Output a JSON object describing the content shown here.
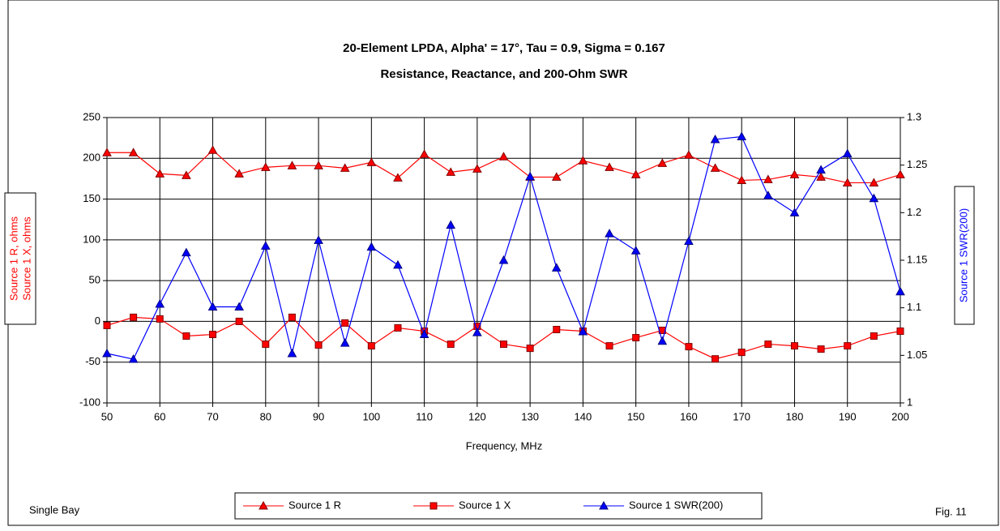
{
  "chart_data": {
    "type": "line",
    "title": "20-Element LPDA, Alpha' = 17°,  Tau = 0.9, Sigma = 0.167",
    "subtitle": "Resistance, Reactance, and 200-Ohm SWR",
    "x_label": "Frequency, MHz",
    "y_label": [
      "Source 1 R, ohms",
      "Source 1 X, ohms"
    ],
    "y2_label": "Source 1 SWR(200)",
    "x": [
      50,
      55,
      60,
      65,
      70,
      75,
      80,
      85,
      90,
      95,
      100,
      105,
      110,
      115,
      120,
      125,
      130,
      135,
      140,
      145,
      150,
      155,
      160,
      165,
      170,
      175,
      180,
      185,
      190,
      195,
      200
    ],
    "xlim": [
      50,
      200
    ],
    "xticks": [
      50,
      60,
      70,
      80,
      90,
      100,
      110,
      120,
      130,
      140,
      150,
      160,
      170,
      180,
      190,
      200
    ],
    "ylim": [
      -100,
      250
    ],
    "yticks": [
      -100,
      -50,
      0,
      50,
      100,
      150,
      200,
      250
    ],
    "y2lim": [
      1,
      1.3
    ],
    "y2ticks": [
      1,
      1.05,
      1.1,
      1.15,
      1.2,
      1.25,
      1.3
    ],
    "grid": true,
    "series": [
      {
        "name": "Source 1 R",
        "color": "#ff0000",
        "marker": "triangle",
        "values": [
          207,
          207,
          181,
          179,
          210,
          181,
          189,
          191,
          191,
          188,
          195,
          176,
          205,
          183,
          187,
          202,
          177,
          177,
          197,
          189,
          180,
          194,
          204,
          188,
          173,
          174,
          180,
          177,
          170,
          170,
          180
        ]
      },
      {
        "name": "Source 1 X",
        "color": "#ff0000",
        "marker": "square",
        "values": [
          -5,
          5,
          3,
          -18,
          -16,
          0,
          -28,
          5,
          -29,
          -2,
          -30,
          -8,
          -12,
          -28,
          -6,
          -28,
          -33,
          -10,
          -12,
          -30,
          -20,
          -11,
          -31,
          -46,
          -38,
          -28,
          -30,
          -34,
          -30,
          -18,
          -12
        ]
      },
      {
        "name": "Source 1 SWR(200)",
        "color": "#0000ff",
        "marker": "triangle",
        "axis": "y2",
        "values": [
          1.052,
          1.046,
          1.104,
          1.158,
          1.101,
          1.101,
          1.165,
          1.052,
          1.171,
          1.063,
          1.164,
          1.145,
          1.072,
          1.187,
          1.074,
          1.15,
          1.238,
          1.142,
          1.075,
          1.178,
          1.16,
          1.065,
          1.17,
          1.277,
          1.28,
          1.218,
          1.2,
          1.245,
          1.262,
          1.215,
          1.117
        ]
      }
    ],
    "notes": [
      "Single Bay",
      "Fig. 11"
    ]
  }
}
